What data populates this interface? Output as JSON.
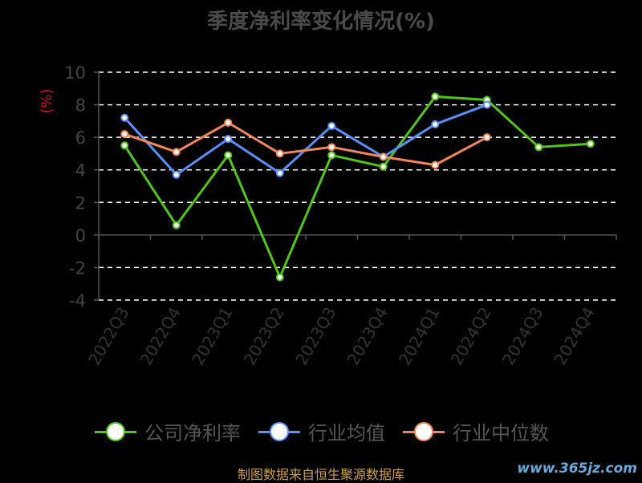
{
  "title": "季度净利率变化情况(%)",
  "source_text": "制图数据来自恒生聚源数据库",
  "watermark": "www.365jz.com",
  "chart_data": {
    "type": "line",
    "ylabel": "(%)",
    "ylim": [
      -4,
      10
    ],
    "yticks": [
      -4,
      -2,
      0,
      2,
      4,
      6,
      8,
      10
    ],
    "grid": true,
    "categories": [
      "2022Q3",
      "2022Q4",
      "2023Q1",
      "2023Q2",
      "2023Q3",
      "2023Q4",
      "2024Q1",
      "2024Q2",
      "2024Q3",
      "2024Q4"
    ],
    "series": [
      {
        "name": "公司净利率",
        "color": "#52c41a",
        "values": [
          5.5,
          0.6,
          4.9,
          -2.6,
          4.9,
          4.2,
          8.5,
          8.3,
          5.4,
          5.6
        ]
      },
      {
        "name": "行业均值",
        "color": "#5b8ff9",
        "values": [
          7.2,
          3.7,
          5.9,
          3.8,
          6.7,
          4.8,
          6.8,
          8.0,
          null,
          null
        ]
      },
      {
        "name": "行业中位数",
        "color": "#f0875a",
        "values": [
          6.2,
          5.1,
          6.9,
          5.0,
          5.4,
          4.8,
          4.3,
          6.0,
          null,
          null
        ]
      }
    ]
  }
}
